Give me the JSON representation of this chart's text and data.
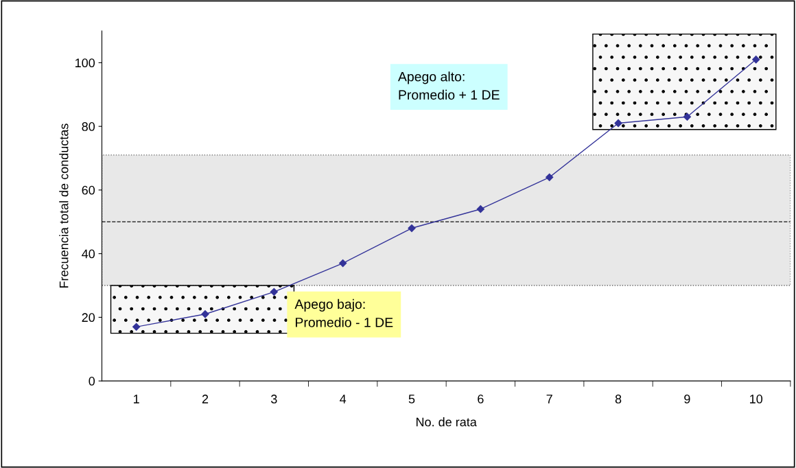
{
  "chart_data": {
    "type": "line",
    "xlabel": "No. de rata",
    "ylabel": "Frecuencia total de conductas",
    "categories": [
      "1",
      "2",
      "3",
      "4",
      "5",
      "6",
      "7",
      "8",
      "9",
      "10"
    ],
    "series": [
      {
        "color": "#333399",
        "values": [
          17,
          21,
          28,
          37,
          48,
          54,
          64,
          81,
          83,
          101
        ]
      }
    ],
    "marker": "diamond",
    "line_style": "solid",
    "grid": false,
    "legend": false,
    "ylim": [
      0,
      110
    ],
    "yticks": [
      0,
      20,
      40,
      60,
      80,
      100
    ],
    "ref_lines": [
      {
        "axis": "y",
        "value": 50,
        "line_style": "dashed",
        "color": "#333333"
      }
    ],
    "bands": [
      {
        "axis": "y",
        "from": 30,
        "to": 71,
        "color": "#e8e8e8"
      }
    ],
    "annotations": [
      "Apego alto:\nPromedio + 1 DE",
      "Apego bajo:\nPromedio - 1 DE"
    ]
  }
}
